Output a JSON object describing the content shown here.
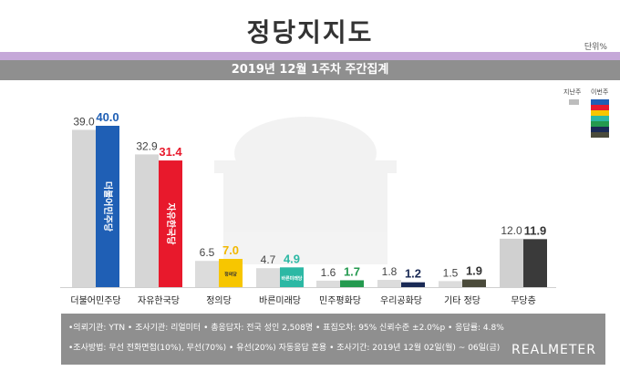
{
  "header": {
    "title": "정당지지도",
    "unit": "단위%",
    "subtitle": "2019년 12월 1주차 주간집계"
  },
  "legend": {
    "previous_label": "지난주",
    "current_label": "이번주",
    "previous_color": "#bdbdbd",
    "current_colors": [
      "#1f5fb5",
      "#e8192c",
      "#f7c600",
      "#2cb8a4",
      "#249a4f",
      "#1a2a55",
      "#4a4a3a"
    ]
  },
  "chart_data": {
    "type": "bar",
    "categories": [
      "더불어민주당",
      "자유한국당",
      "정의당",
      "바른미래당",
      "민주평화당",
      "우리공화당",
      "기타 정당",
      "무당층"
    ],
    "series": [
      {
        "name": "지난주",
        "values": [
          39.0,
          32.9,
          6.5,
          4.7,
          1.6,
          1.8,
          1.5,
          12.0
        ]
      },
      {
        "name": "이번주",
        "values": [
          40.0,
          31.4,
          7.0,
          4.9,
          1.7,
          1.2,
          1.9,
          11.9
        ]
      }
    ],
    "value_labels_previous": [
      "39.0",
      "32.9",
      "6.5",
      "4.7",
      "1.6",
      "1.8",
      "1.5",
      "12.0"
    ],
    "value_labels_current": [
      "40.0",
      "31.4",
      "7.0",
      "4.9",
      "1.7",
      "1.2",
      "1.9",
      "11.9"
    ],
    "bar_logos": [
      "더불어민주당",
      "자유한국당",
      "정의당",
      "바른미래당",
      "",
      "",
      "",
      ""
    ],
    "current_colors": [
      "#1f5fb5",
      "#e8192c",
      "#f7c600",
      "#2cb8a4",
      "#249a4f",
      "#1a2a55",
      "#4a4a3a",
      "#3a3a3a"
    ],
    "previous_colors": [
      "#d6d6d6",
      "#d6d6d6",
      "#dcdcdc",
      "#dcdcdc",
      "#dcdcdc",
      "#dcdcdc",
      "#dcdcdc",
      "#d0d0d0"
    ],
    "label_colors_current": [
      "#1f5fb5",
      "#e8192c",
      "#f2b800",
      "#2cb8a4",
      "#249a4f",
      "#1a2a55",
      "#333333",
      "#333333"
    ],
    "ylim": [
      0,
      40
    ]
  },
  "footer": {
    "line1": "•의뢰기관: YTN • 조사기관: 리얼미터 • 총응답자: 전국 성인 2,508명 • 표집오차: 95% 신뢰수준 ±2.0%p • 응답률: 4.8%",
    "line2": "•조사방법: 무선 전화면접(10%), 무선(70%) • 유선(20%) 자동응답 혼용 • 조사기간: 2019년 12월 02일(월) ~ 06일(금)",
    "brand": "REALMETER"
  }
}
